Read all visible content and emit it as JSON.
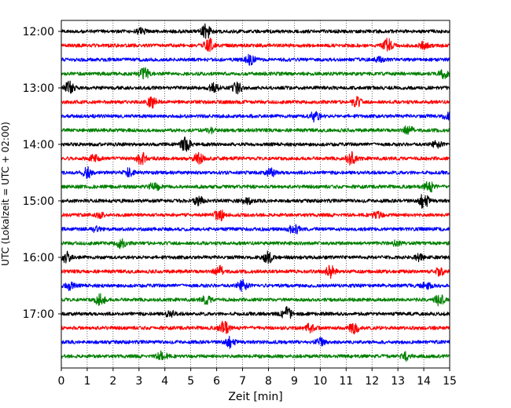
{
  "chart_data": {
    "type": "line",
    "title": "",
    "xlabel": "Zeit  [min]",
    "ylabel": "UTC (Lokalzeit = UTC + 02:00)",
    "xlim": [
      0,
      15
    ],
    "x_ticks": [
      "0",
      "1",
      "2",
      "3",
      "4",
      "5",
      "6",
      "7",
      "8",
      "9",
      "10",
      "11",
      "12",
      "13",
      "14",
      "15"
    ],
    "y_ticks": [
      "12:00",
      "13:00",
      "14:00",
      "15:00",
      "16:00",
      "17:00"
    ],
    "grid": "vertical-dotted",
    "trace_interval_minutes": 15,
    "start_time": "12:00",
    "colors": [
      "#000000",
      "#ff0000",
      "#0000ff",
      "#008000"
    ],
    "traces": [
      {
        "time": "12:00",
        "color": "#000000",
        "bursts": [
          [
            5.6,
            1.0
          ],
          [
            3.1,
            0.35
          ]
        ]
      },
      {
        "time": "12:15",
        "color": "#ff0000",
        "bursts": [
          [
            5.7,
            0.9
          ],
          [
            12.6,
            0.9
          ],
          [
            14.0,
            0.4
          ]
        ]
      },
      {
        "time": "12:30",
        "color": "#0000ff",
        "bursts": [
          [
            7.3,
            0.6
          ],
          [
            12.3,
            0.3
          ]
        ]
      },
      {
        "time": "12:45",
        "color": "#008000",
        "bursts": [
          [
            3.2,
            0.8
          ],
          [
            14.8,
            0.6
          ]
        ]
      },
      {
        "time": "13:00",
        "color": "#000000",
        "bursts": [
          [
            0.3,
            0.8
          ],
          [
            6.8,
            0.7
          ],
          [
            5.9,
            0.6
          ]
        ]
      },
      {
        "time": "13:15",
        "color": "#ff0000",
        "bursts": [
          [
            3.5,
            0.7
          ],
          [
            11.4,
            0.6
          ]
        ]
      },
      {
        "time": "13:30",
        "color": "#0000ff",
        "bursts": [
          [
            9.8,
            0.7
          ],
          [
            14.9,
            0.4
          ]
        ]
      },
      {
        "time": "13:45",
        "color": "#008000",
        "bursts": [
          [
            13.4,
            0.6
          ],
          [
            5.8,
            0.3
          ]
        ]
      },
      {
        "time": "14:00",
        "color": "#000000",
        "bursts": [
          [
            4.8,
            0.9
          ],
          [
            14.5,
            0.4
          ]
        ]
      },
      {
        "time": "14:15",
        "color": "#ff0000",
        "bursts": [
          [
            3.1,
            0.8
          ],
          [
            11.2,
            0.8
          ],
          [
            5.3,
            0.7
          ],
          [
            1.3,
            0.5
          ]
        ]
      },
      {
        "time": "14:30",
        "color": "#0000ff",
        "bursts": [
          [
            1.0,
            0.7
          ],
          [
            2.6,
            0.5
          ],
          [
            8.1,
            0.5
          ]
        ]
      },
      {
        "time": "14:45",
        "color": "#008000",
        "bursts": [
          [
            3.6,
            0.7
          ],
          [
            14.2,
            0.7
          ]
        ]
      },
      {
        "time": "15:00",
        "color": "#000000",
        "bursts": [
          [
            14.0,
            1.0
          ],
          [
            5.3,
            0.6
          ],
          [
            7.2,
            0.4
          ]
        ]
      },
      {
        "time": "15:15",
        "color": "#ff0000",
        "bursts": [
          [
            6.1,
            0.8
          ],
          [
            12.2,
            0.5
          ],
          [
            1.5,
            0.3
          ]
        ]
      },
      {
        "time": "15:30",
        "color": "#0000ff",
        "bursts": [
          [
            9.0,
            0.7
          ],
          [
            1.3,
            0.3
          ]
        ]
      },
      {
        "time": "15:45",
        "color": "#008000",
        "bursts": [
          [
            2.3,
            0.6
          ],
          [
            12.9,
            0.3
          ]
        ]
      },
      {
        "time": "16:00",
        "color": "#000000",
        "bursts": [
          [
            0.2,
            0.7
          ],
          [
            8.0,
            0.8
          ],
          [
            13.8,
            0.4
          ]
        ]
      },
      {
        "time": "16:15",
        "color": "#ff0000",
        "bursts": [
          [
            6.1,
            0.7
          ],
          [
            10.4,
            0.8
          ],
          [
            14.6,
            0.5
          ]
        ]
      },
      {
        "time": "16:30",
        "color": "#0000ff",
        "bursts": [
          [
            0.3,
            0.6
          ],
          [
            7.0,
            0.7
          ],
          [
            14.1,
            0.4
          ]
        ]
      },
      {
        "time": "16:45",
        "color": "#008000",
        "bursts": [
          [
            1.5,
            0.8
          ],
          [
            14.6,
            0.7
          ],
          [
            5.6,
            0.5
          ]
        ]
      },
      {
        "time": "17:00",
        "color": "#000000",
        "bursts": [
          [
            8.7,
            0.8
          ],
          [
            4.2,
            0.4
          ]
        ]
      },
      {
        "time": "17:15",
        "color": "#ff0000",
        "bursts": [
          [
            6.3,
            0.9
          ],
          [
            11.3,
            0.7
          ],
          [
            9.6,
            0.5
          ]
        ]
      },
      {
        "time": "17:30",
        "color": "#0000ff",
        "bursts": [
          [
            6.5,
            0.7
          ],
          [
            10.0,
            0.5
          ]
        ]
      },
      {
        "time": "17:45",
        "color": "#008000",
        "bursts": [
          [
            3.9,
            0.6
          ],
          [
            13.3,
            0.5
          ]
        ]
      }
    ]
  }
}
